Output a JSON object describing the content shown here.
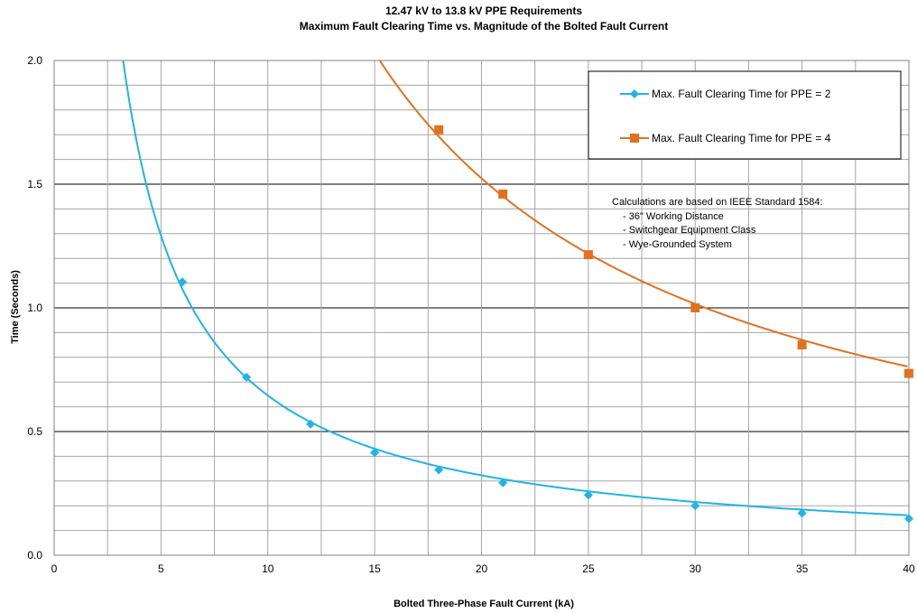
{
  "chart_data": {
    "type": "line",
    "title": "12.47 kV to 13.8 kV PPE Requirements",
    "subtitle": "Maximum Fault Clearing Time vs. Magnitude of the Bolted Fault Current",
    "xlabel": "Bolted Three-Phase Fault Current (kA)",
    "ylabel": "Time (Seconds)",
    "xlim": [
      0,
      40
    ],
    "ylim": [
      0.0,
      2.0
    ],
    "x_ticks": [
      "0",
      "5",
      "10",
      "15",
      "20",
      "25",
      "30",
      "35",
      "40"
    ],
    "y_ticks": [
      "0.0",
      "0.5",
      "1.0",
      "1.5",
      "2.0"
    ],
    "grid": true,
    "legend_position": "top-right",
    "series": [
      {
        "name": "Max. Fault Clearing Time for PPE = 2",
        "color": "#1FB4E6",
        "marker": "diamond",
        "x": [
          6,
          9,
          12,
          15,
          18,
          21,
          25,
          30,
          35,
          40
        ],
        "y": [
          1.105,
          0.72,
          0.53,
          0.415,
          0.345,
          0.293,
          0.243,
          0.2,
          0.17,
          0.148
        ]
      },
      {
        "name": "Max. Fault Clearing Time for PPE = 4",
        "color": "#E2711D",
        "marker": "square",
        "x": [
          18,
          21,
          25,
          30,
          35,
          40
        ],
        "y": [
          1.72,
          1.46,
          1.215,
          1.0,
          0.85,
          0.735
        ]
      }
    ],
    "annotation": {
      "heading": "Calculations are based on IEEE  Standard 1584:",
      "lines": [
        "- 36\" Working Distance",
        "- Switchgear Equipment Class",
        "- Wye-Grounded System"
      ]
    }
  }
}
